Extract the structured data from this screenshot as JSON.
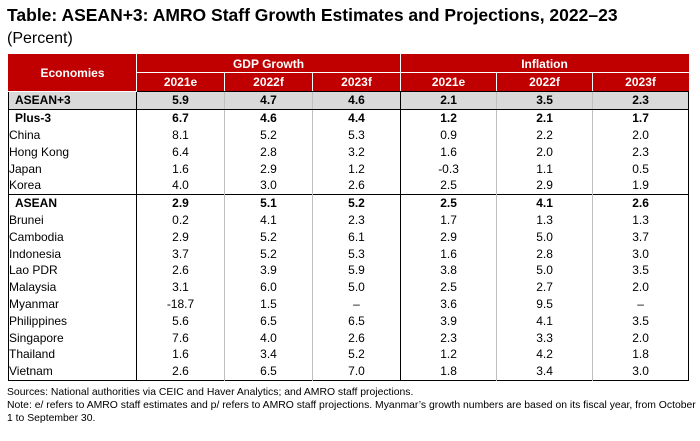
{
  "title": "Table: ASEAN+3: AMRO Staff Growth Estimates and Projections, 2022–23",
  "subtitle": "(Percent)",
  "header": {
    "economies": "Economies",
    "gdp_group": "GDP Growth",
    "inflation_group": "Inflation",
    "years": [
      "2021e",
      "2022f",
      "2023f",
      "2021e",
      "2022f",
      "2023f"
    ]
  },
  "rows": [
    {
      "name": "ASEAN+3",
      "values": [
        "5.9",
        "4.7",
        "4.6",
        "2.1",
        "3.5",
        "2.3"
      ]
    },
    {
      "name": "Plus-3",
      "values": [
        "6.7",
        "4.6",
        "4.4",
        "1.2",
        "2.1",
        "1.7"
      ]
    },
    {
      "name": "China",
      "values": [
        "8.1",
        "5.2",
        "5.3",
        "0.9",
        "2.2",
        "2.0"
      ]
    },
    {
      "name": "Hong Kong",
      "values": [
        "6.4",
        "2.8",
        "3.2",
        "1.6",
        "2.0",
        "2.3"
      ]
    },
    {
      "name": "Japan",
      "values": [
        "1.6",
        "2.9",
        "1.2",
        "-0.3",
        "1.1",
        "0.5"
      ]
    },
    {
      "name": "Korea",
      "values": [
        "4.0",
        "3.0",
        "2.6",
        "2.5",
        "2.9",
        "1.9"
      ]
    },
    {
      "name": "ASEAN",
      "values": [
        "2.9",
        "5.1",
        "5.2",
        "2.5",
        "4.1",
        "2.6"
      ]
    },
    {
      "name": "Brunei",
      "values": [
        "0.2",
        "4.1",
        "2.3",
        "1.7",
        "1.3",
        "1.3"
      ]
    },
    {
      "name": "Cambodia",
      "values": [
        "2.9",
        "5.2",
        "6.1",
        "2.9",
        "5.0",
        "3.7"
      ]
    },
    {
      "name": "Indonesia",
      "values": [
        "3.7",
        "5.2",
        "5.3",
        "1.6",
        "2.8",
        "3.0"
      ]
    },
    {
      "name": "Lao PDR",
      "values": [
        "2.6",
        "3.9",
        "5.9",
        "3.8",
        "5.0",
        "3.5"
      ]
    },
    {
      "name": "Malaysia",
      "values": [
        "3.1",
        "6.0",
        "5.0",
        "2.5",
        "2.7",
        "2.0"
      ]
    },
    {
      "name": "Myanmar",
      "values": [
        "-18.7",
        "1.5",
        "–",
        "3.6",
        "9.5",
        "–"
      ]
    },
    {
      "name": "Philippines",
      "values": [
        "5.6",
        "6.5",
        "6.5",
        "3.9",
        "4.1",
        "3.5"
      ]
    },
    {
      "name": "Singapore",
      "values": [
        "7.6",
        "4.0",
        "2.6",
        "2.3",
        "3.3",
        "2.0"
      ]
    },
    {
      "name": "Thailand",
      "values": [
        "1.6",
        "3.4",
        "5.2",
        "1.2",
        "4.2",
        "1.8"
      ]
    },
    {
      "name": "Vietnam",
      "values": [
        "2.6",
        "6.5",
        "7.0",
        "1.8",
        "3.4",
        "3.0"
      ]
    }
  ],
  "footer": {
    "sources": "Sources: National authorities via CEIC and Haver Analytics; and AMRO staff projections.",
    "note": "Note: e/ refers to AMRO staff estimates and p/ refers to AMRO staff projections. Myanmar’s growth numbers are based on its fiscal year, from October 1 to September 30."
  }
}
